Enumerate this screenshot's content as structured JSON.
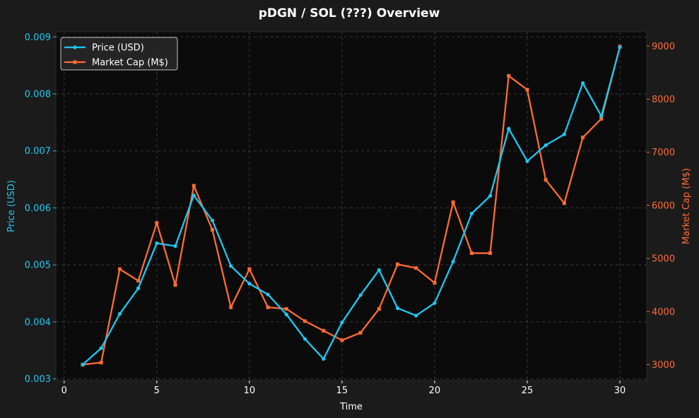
{
  "chart_data": {
    "type": "line",
    "title": "pDGN / SOL (???) Overview",
    "xlabel": "Time",
    "ylabel_left": "Price (USD)",
    "ylabel_right": "Market Cap (M$)",
    "x": [
      1,
      2,
      3,
      4,
      5,
      6,
      7,
      8,
      9,
      10,
      11,
      12,
      13,
      14,
      15,
      16,
      17,
      18,
      19,
      20,
      21,
      22,
      23,
      24,
      25,
      26,
      27,
      28,
      29,
      30
    ],
    "xlim": [
      -0.45,
      31.45
    ],
    "xticks": [
      0,
      5,
      10,
      15,
      20,
      25,
      30
    ],
    "ylim_left": [
      0.00297,
      0.00909
    ],
    "yticks_left": [
      "0.003",
      "0.004",
      "0.005",
      "0.006",
      "0.007",
      "0.008",
      "0.009"
    ],
    "ylim_right": [
      2700,
      9270
    ],
    "yticks_right": [
      "3000",
      "4000",
      "5000",
      "6000",
      "7000",
      "8000",
      "9000"
    ],
    "grid": true,
    "legend_position": "top-left",
    "series": [
      {
        "name": "Price (USD)",
        "axis": "left",
        "color": "#1ec8f0",
        "marker": "circle",
        "values": [
          0.00325,
          0.00354,
          0.00414,
          0.00459,
          0.00538,
          0.00533,
          0.00622,
          0.00578,
          0.00498,
          0.00467,
          0.00448,
          0.00413,
          0.0037,
          0.00335,
          0.00399,
          0.00447,
          0.00491,
          0.00424,
          0.00411,
          0.00433,
          0.00506,
          0.0059,
          0.00621,
          0.00739,
          0.00682,
          0.0071,
          0.00729,
          0.00819,
          0.00761,
          0.00882
        ]
      },
      {
        "name": "Market Cap (M$)",
        "axis": "right",
        "color": "#ff6b35",
        "marker": "square",
        "values": [
          3000,
          3040,
          4800,
          4580,
          5670,
          4500,
          6370,
          5540,
          4080,
          4800,
          4080,
          4050,
          3820,
          3640,
          3460,
          3600,
          4050,
          4890,
          4820,
          4540,
          6060,
          5100,
          5100,
          8440,
          8180,
          6480,
          6040,
          7280,
          7630,
          8990
        ]
      }
    ]
  }
}
